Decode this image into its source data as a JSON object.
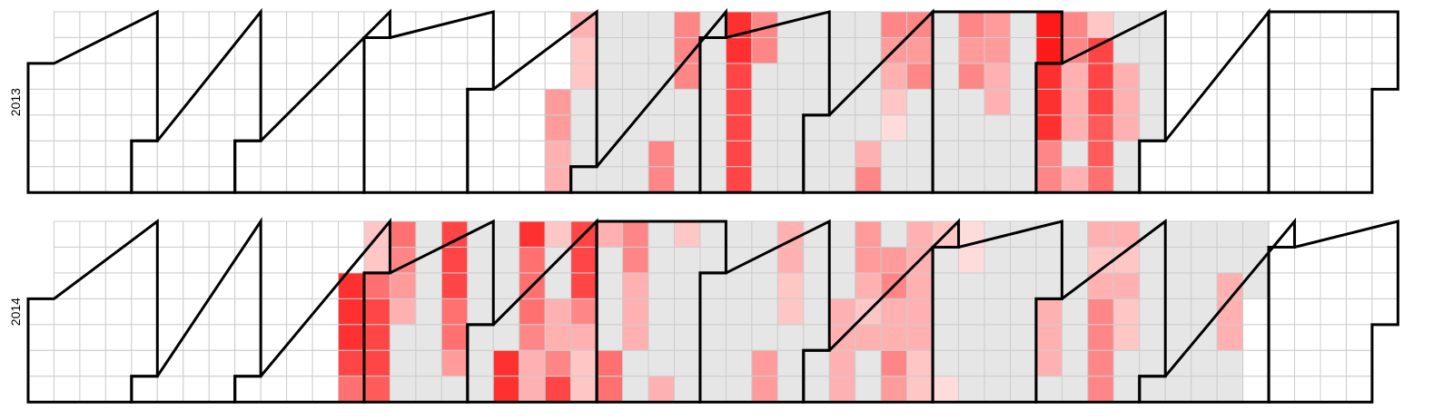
{
  "chart_data": {
    "type": "calendar",
    "zero_color": "#e6e6e6",
    "empty_color": "#ffffff",
    "low_color": "#ffdcdc",
    "high_color": "#ff1a1a",
    "clim": [
      1,
      10
    ],
    "series": [
      {
        "name": "2013",
        "values": [
          null,
          null,
          null,
          null,
          null,
          null,
          null,
          null,
          null,
          null,
          null,
          null,
          null,
          null,
          null,
          null,
          null,
          null,
          null,
          null,
          null,
          null,
          null,
          null,
          null,
          null,
          null,
          null,
          null,
          null,
          null,
          null,
          null,
          null,
          null,
          null,
          null,
          null,
          null,
          null,
          null,
          null,
          null,
          null,
          null,
          null,
          null,
          null,
          null,
          null,
          null,
          null,
          null,
          null,
          null,
          null,
          null,
          null,
          null,
          null,
          null,
          null,
          null,
          null,
          null,
          null,
          null,
          null,
          null,
          null,
          null,
          null,
          null,
          null,
          null,
          null,
          null,
          null,
          null,
          null,
          null,
          null,
          null,
          null,
          null,
          null,
          null,
          null,
          null,
          null,
          null,
          null,
          null,
          null,
          null,
          null,
          null,
          null,
          null,
          null,
          null,
          null,
          null,
          null,
          null,
          null,
          null,
          null,
          null,
          null,
          null,
          null,
          null,
          null,
          null,
          null,
          null,
          null,
          null,
          null,
          null,
          null,
          null,
          null,
          null,
          null,
          null,
          null,
          null,
          null,
          null,
          null,
          null,
          null,
          null,
          null,
          null,
          null,
          null,
          null,
          null,
          4,
          4,
          3,
          3,
          3,
          2,
          2,
          0,
          0,
          0,
          0,
          0,
          0,
          0,
          0,
          0,
          0,
          0,
          0,
          0,
          0,
          0,
          0,
          0,
          0,
          0,
          0,
          0,
          0,
          0,
          5,
          5,
          5,
          5,
          5,
          0,
          0,
          0,
          0,
          0,
          0,
          0,
          0,
          0,
          0,
          0,
          9,
          9,
          8,
          8,
          8,
          8,
          8,
          5,
          5,
          0,
          0,
          0,
          0,
          0,
          0,
          0,
          0,
          0,
          0,
          0,
          0,
          0,
          0,
          0,
          0,
          0,
          0,
          0,
          0,
          0,
          0,
          0,
          0,
          0,
          0,
          0,
          0,
          0,
          0,
          0,
          3,
          5,
          5,
          4,
          3,
          2,
          1,
          0,
          0,
          5,
          4,
          5,
          0,
          0,
          0,
          0,
          0,
          0,
          0,
          0,
          0,
          0,
          0,
          5,
          4,
          5,
          0,
          0,
          0,
          0,
          4,
          4,
          3,
          3,
          0,
          0,
          0,
          0,
          0,
          0,
          0,
          0,
          0,
          0,
          10,
          10,
          9,
          9,
          9,
          5,
          5,
          5,
          5,
          3,
          3,
          3,
          0,
          3,
          2,
          8,
          8,
          8,
          7,
          7,
          6,
          0,
          0,
          3,
          3,
          3,
          0,
          0,
          0,
          0,
          0,
          0,
          0,
          null,
          null,
          null,
          null,
          null,
          null,
          null,
          null,
          null,
          null,
          null,
          null,
          null,
          null,
          null,
          null,
          null,
          null,
          null,
          null,
          null,
          null,
          null,
          null,
          null,
          null,
          null,
          null,
          null,
          null,
          null,
          null,
          null,
          null,
          null,
          null,
          null,
          null,
          null,
          null,
          null,
          null,
          null,
          null,
          null,
          null,
          null,
          null,
          null,
          null,
          null,
          null,
          null,
          null,
          null,
          null,
          null,
          null,
          null,
          null,
          null
        ]
      },
      {
        "name": "2014",
        "values": [
          null,
          null,
          null,
          null,
          null,
          null,
          null,
          null,
          null,
          null,
          null,
          null,
          null,
          null,
          null,
          null,
          null,
          null,
          null,
          null,
          null,
          null,
          null,
          null,
          null,
          null,
          null,
          null,
          null,
          null,
          null,
          null,
          null,
          null,
          null,
          null,
          null,
          null,
          null,
          null,
          null,
          null,
          null,
          null,
          null,
          null,
          null,
          null,
          null,
          null,
          null,
          null,
          null,
          null,
          null,
          null,
          null,
          null,
          null,
          null,
          null,
          null,
          null,
          null,
          null,
          null,
          null,
          null,
          null,
          null,
          null,
          null,
          null,
          null,
          null,
          null,
          null,
          null,
          null,
          null,
          null,
          null,
          null,
          9,
          9,
          9,
          8,
          6,
          2,
          2,
          6,
          8,
          8,
          8,
          7,
          6,
          5,
          4,
          3,
          0,
          0,
          0,
          0,
          0,
          0,
          0,
          0,
          0,
          0,
          8,
          8,
          8,
          6,
          6,
          4,
          0,
          0,
          0,
          0,
          0,
          0,
          0,
          0,
          0,
          0,
          0,
          0,
          0,
          9,
          9,
          9,
          6,
          6,
          6,
          5,
          3,
          3,
          2,
          0,
          0,
          3,
          3,
          5,
          8,
          8,
          8,
          8,
          5,
          3,
          2,
          2,
          3,
          0,
          0,
          0,
          0,
          6,
          6,
          5,
          5,
          3,
          3,
          3,
          0,
          0,
          0,
          0,
          0,
          0,
          0,
          0,
          3,
          2,
          0,
          0,
          0,
          0,
          0,
          0,
          0,
          0,
          0,
          0,
          0,
          0,
          0,
          0,
          0,
          0,
          0,
          0,
          0,
          0,
          0,
          0,
          0,
          0,
          0,
          4,
          4,
          3,
          3,
          2,
          2,
          0,
          0,
          0,
          0,
          0,
          0,
          0,
          0,
          0,
          0,
          0,
          0,
          0,
          3,
          3,
          3,
          3,
          4,
          4,
          3,
          2,
          3,
          0,
          0,
          0,
          4,
          5,
          3,
          3,
          5,
          4,
          3,
          3,
          3,
          3,
          3,
          2,
          2,
          2,
          0,
          0,
          0,
          0,
          0,
          1,
          1,
          1,
          0,
          0,
          0,
          0,
          0,
          0,
          0,
          0,
          0,
          0,
          0,
          0,
          0,
          0,
          0,
          0,
          0,
          0,
          0,
          0,
          0,
          0,
          3,
          3,
          3,
          0,
          0,
          0,
          0,
          0,
          0,
          0,
          0,
          3,
          2,
          3,
          5,
          5,
          5,
          5,
          3,
          2,
          3,
          2,
          2,
          0,
          0,
          0,
          0,
          0,
          0,
          0,
          0,
          0,
          0,
          0,
          0,
          0,
          0,
          0,
          0,
          0,
          0,
          0,
          0,
          0,
          0,
          0,
          0,
          0,
          3,
          3,
          3,
          0,
          0,
          0,
          0,
          0,
          null,
          null,
          null,
          null,
          null,
          null,
          null,
          null,
          null,
          null,
          null,
          null,
          null,
          null,
          null,
          null,
          null,
          null,
          null,
          null,
          null,
          null,
          null,
          null,
          null,
          null,
          null,
          null,
          null,
          null,
          null,
          null,
          null,
          null,
          null,
          null
        ]
      }
    ]
  }
}
